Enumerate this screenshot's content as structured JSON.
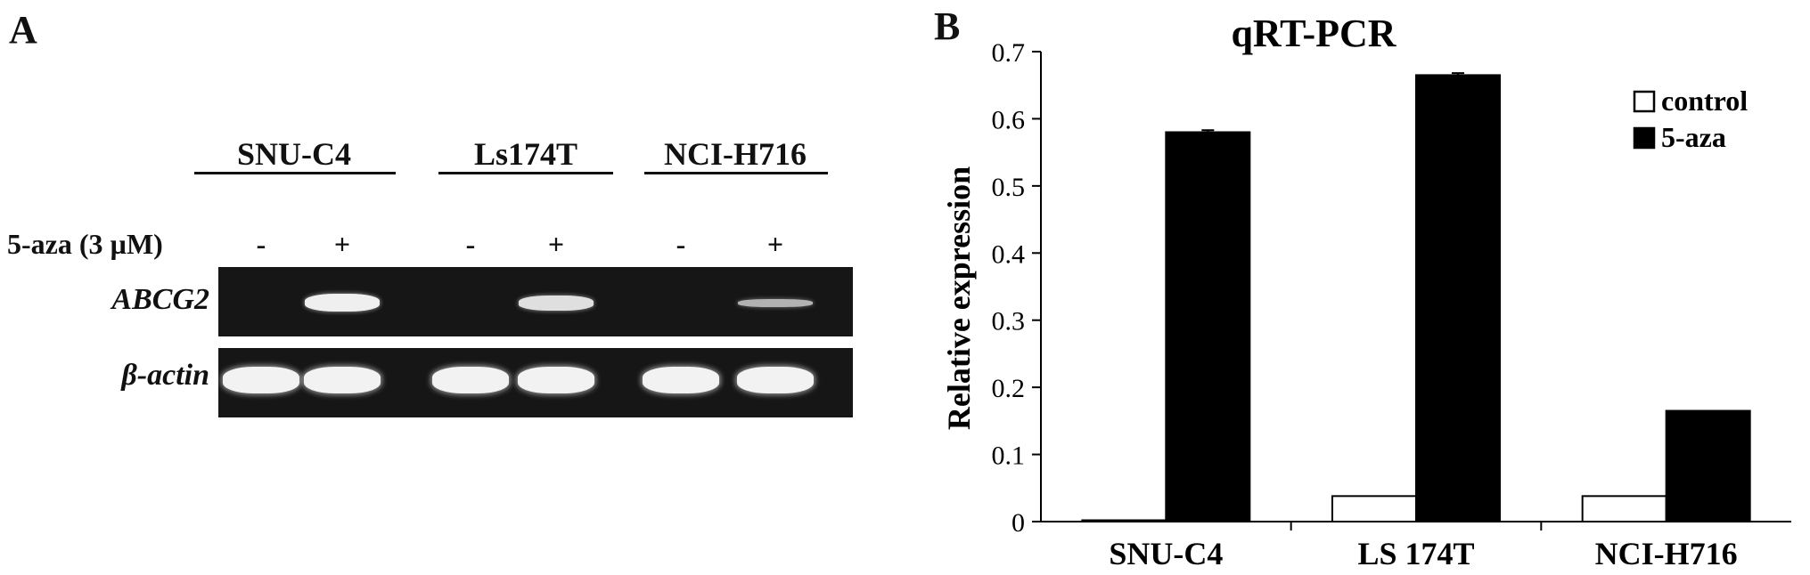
{
  "panels": {
    "a": {
      "letter": "A",
      "cell_lines": [
        "SNU-C4",
        "Ls174T",
        "NCI-H716"
      ],
      "treatment_label": "5-aza (3 µM)",
      "lane_signs": [
        "-",
        "+",
        "-",
        "+",
        "-",
        "+"
      ],
      "genes": [
        "ABCG2",
        "β-actin"
      ],
      "abcg2_band_intensity": [
        0,
        1.0,
        0,
        0.85,
        0,
        0.45
      ],
      "actin_band_intensity": [
        1,
        1,
        1,
        1,
        1,
        1
      ]
    },
    "b": {
      "letter": "B"
    }
  },
  "chart_data": {
    "type": "bar",
    "title": "qRT-PCR",
    "xlabel": "",
    "ylabel": "Relative expression",
    "categories": [
      "SNU-C4",
      "LS 174T",
      "NCI-H716"
    ],
    "series": [
      {
        "name": "control",
        "values": [
          0.002,
          0.038,
          0.038
        ],
        "color": "#ffffff"
      },
      {
        "name": "5-aza",
        "values": [
          0.58,
          0.665,
          0.165
        ],
        "errors": [
          0.003,
          0.003,
          0
        ],
        "color": "#000000"
      }
    ],
    "ylim": [
      0,
      0.7
    ],
    "yticks": [
      "0",
      "0.1",
      "0.2",
      "0.3",
      "0.4",
      "0.5",
      "0.6",
      "0.7"
    ],
    "legend_position": "top-right",
    "grid": false
  }
}
